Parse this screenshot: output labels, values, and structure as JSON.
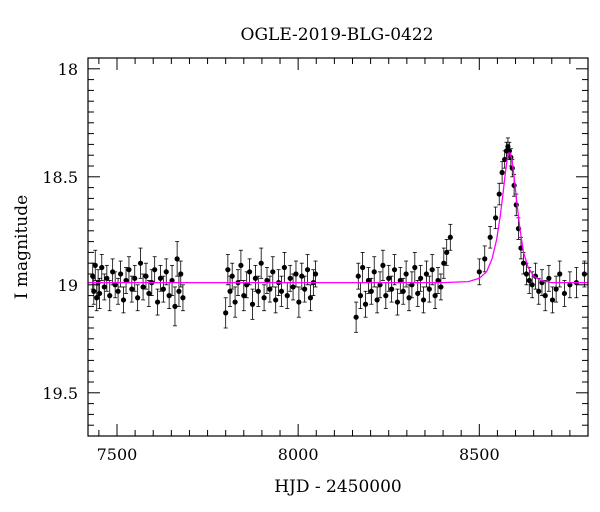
{
  "chart_data": {
    "type": "scatter",
    "title": "OGLE-2019-BLG-0422",
    "xlabel": "HJD - 2450000",
    "ylabel": "I magnitude",
    "xlim": [
      7420,
      8800
    ],
    "ylim": [
      19.7,
      17.95
    ],
    "y_inverted": true,
    "x_ticks": [
      7500,
      8000,
      8500
    ],
    "x_tick_labels": [
      "7500",
      "8000",
      "8500"
    ],
    "y_ticks": [
      18,
      18.5,
      19,
      19.5
    ],
    "y_tick_labels": [
      "18",
      "18.5",
      "19",
      "19.5"
    ],
    "grid": false,
    "series": [
      {
        "kind": "observations",
        "color": "#000000",
        "x": [
          7433,
          7436,
          7440,
          7444,
          7448,
          7452,
          7458,
          7465,
          7472,
          7480,
          7488,
          7495,
          7503,
          7510,
          7518,
          7525,
          7533,
          7541,
          7549,
          7557,
          7565,
          7572,
          7580,
          7588,
          7596,
          7604,
          7612,
          7620,
          7628,
          7636,
          7644,
          7652,
          7660,
          7666,
          7671,
          7676,
          7682,
          7800,
          7806,
          7812,
          7818,
          7826,
          7834,
          7842,
          7850,
          7858,
          7866,
          7874,
          7882,
          7890,
          7898,
          7906,
          7914,
          7922,
          7930,
          7938,
          7946,
          7954,
          7962,
          7970,
          7978,
          7986,
          7994,
          8002,
          8010,
          8018,
          8026,
          8034,
          8042,
          8048,
          8160,
          8166,
          8172,
          8178,
          8186,
          8194,
          8202,
          8210,
          8218,
          8226,
          8234,
          8242,
          8250,
          8258,
          8266,
          8274,
          8282,
          8290,
          8298,
          8306,
          8314,
          8322,
          8330,
          8338,
          8346,
          8354,
          8362,
          8370,
          8378,
          8386,
          8394,
          8402,
          8410,
          8420,
          8500,
          8515,
          8530,
          8545,
          8555,
          8563,
          8570,
          8575,
          8579,
          8583,
          8587,
          8591,
          8596,
          8602,
          8608,
          8615,
          8622,
          8630,
          8638,
          8646,
          8655,
          8664,
          8673,
          8682,
          8692,
          8702,
          8712,
          8722,
          8735,
          8750,
          8768,
          8790
        ],
        "y": [
          18.96,
          19.03,
          18.91,
          19.06,
          18.99,
          19.04,
          18.92,
          19.01,
          18.97,
          19.05,
          18.94,
          19.0,
          19.03,
          18.95,
          19.07,
          18.98,
          18.93,
          19.02,
          18.97,
          19.06,
          18.9,
          19.01,
          18.96,
          19.04,
          18.99,
          18.93,
          19.08,
          18.97,
          19.02,
          18.94,
          19.05,
          18.98,
          19.1,
          18.88,
          19.03,
          18.95,
          19.06,
          19.13,
          18.93,
          19.03,
          18.96,
          19.08,
          18.99,
          18.91,
          19.05,
          19.0,
          18.94,
          19.09,
          18.97,
          19.03,
          18.9,
          19.06,
          18.98,
          19.02,
          18.94,
          19.07,
          18.99,
          19.03,
          18.92,
          19.05,
          18.97,
          19.01,
          18.95,
          19.08,
          18.96,
          19.02,
          18.93,
          19.06,
          18.99,
          18.95,
          19.15,
          18.96,
          19.05,
          18.92,
          19.09,
          18.98,
          19.03,
          18.94,
          19.07,
          19.0,
          18.91,
          19.05,
          18.97,
          19.02,
          18.93,
          19.08,
          18.98,
          19.03,
          18.95,
          19.06,
          19.0,
          18.92,
          19.04,
          18.97,
          19.07,
          18.95,
          19.02,
          18.93,
          19.05,
          18.98,
          19.01,
          18.9,
          18.85,
          18.78,
          18.94,
          18.88,
          18.78,
          18.69,
          18.58,
          18.48,
          18.42,
          18.38,
          18.36,
          18.38,
          18.41,
          18.46,
          18.54,
          18.63,
          18.74,
          18.83,
          18.9,
          18.95,
          18.98,
          19.0,
          18.96,
          19.03,
          18.99,
          19.05,
          18.97,
          19.07,
          19.02,
          18.95,
          19.04,
          19.0,
          18.99,
          18.95
        ],
        "yerr": [
          0.06,
          0.06,
          0.07,
          0.06,
          0.06,
          0.07,
          0.06,
          0.06,
          0.06,
          0.07,
          0.06,
          0.06,
          0.06,
          0.06,
          0.06,
          0.06,
          0.06,
          0.06,
          0.06,
          0.06,
          0.07,
          0.06,
          0.06,
          0.06,
          0.06,
          0.06,
          0.06,
          0.06,
          0.06,
          0.06,
          0.06,
          0.07,
          0.09,
          0.08,
          0.07,
          0.06,
          0.06,
          0.07,
          0.07,
          0.07,
          0.06,
          0.07,
          0.06,
          0.07,
          0.07,
          0.06,
          0.06,
          0.07,
          0.06,
          0.07,
          0.07,
          0.06,
          0.06,
          0.06,
          0.07,
          0.06,
          0.06,
          0.07,
          0.07,
          0.06,
          0.06,
          0.06,
          0.06,
          0.07,
          0.06,
          0.06,
          0.07,
          0.06,
          0.06,
          0.06,
          0.07,
          0.06,
          0.06,
          0.07,
          0.06,
          0.06,
          0.06,
          0.07,
          0.06,
          0.06,
          0.07,
          0.06,
          0.06,
          0.06,
          0.07,
          0.06,
          0.06,
          0.06,
          0.06,
          0.06,
          0.06,
          0.07,
          0.06,
          0.06,
          0.06,
          0.06,
          0.06,
          0.07,
          0.06,
          0.06,
          0.06,
          0.07,
          0.06,
          0.06,
          0.06,
          0.06,
          0.05,
          0.05,
          0.05,
          0.05,
          0.04,
          0.04,
          0.04,
          0.04,
          0.04,
          0.04,
          0.05,
          0.05,
          0.05,
          0.05,
          0.05,
          0.05,
          0.06,
          0.06,
          0.06,
          0.06,
          0.06,
          0.07,
          0.06,
          0.06,
          0.06,
          0.06,
          0.06,
          0.06,
          0.07,
          0.06
        ]
      },
      {
        "kind": "model",
        "color": "#ff00ff",
        "x": [
          7420,
          8000,
          8400,
          8470,
          8500,
          8520,
          8535,
          8548,
          8558,
          8566,
          8572,
          8577,
          8581,
          8585,
          8590,
          8596,
          8603,
          8612,
          8622,
          8635,
          8650,
          8670,
          8700,
          8750,
          8800
        ],
        "y": [
          18.99,
          18.99,
          18.99,
          18.985,
          18.97,
          18.94,
          18.88,
          18.79,
          18.68,
          18.57,
          18.48,
          18.42,
          18.39,
          18.39,
          18.42,
          18.5,
          18.61,
          18.74,
          18.85,
          18.92,
          18.96,
          18.98,
          18.99,
          18.99,
          18.99
        ]
      }
    ]
  }
}
